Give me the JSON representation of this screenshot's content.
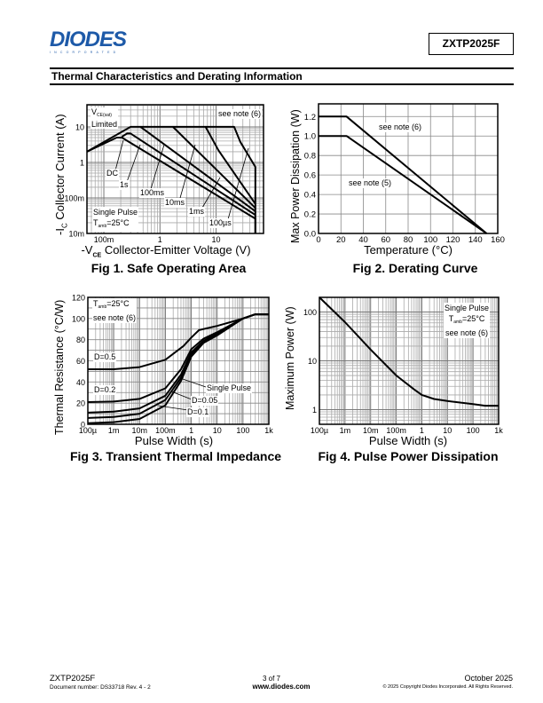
{
  "header": {
    "logo_text": "DIODES",
    "logo_subtext": "INCORPORATED",
    "part_number": "ZXTP2025F",
    "section_title": "Thermal Characteristics and Derating Information"
  },
  "footer": {
    "part_number": "ZXTP2025F",
    "document_number": "Document number: DS33718 Rev. 4 - 2",
    "page": "3 of 7",
    "website": "www.diodes.com",
    "date": "October 2025",
    "copyright": "© 2025 Copyright Diodes Incorporated. All Rights Reserved."
  },
  "annotations": {
    "fig1": {
      "vce_sat_v": "V",
      "vce_sat_sub": "CE(sat)",
      "vce_sat_limited": "Limited",
      "see_note": "see note (6)",
      "single_pulse": "Single Pulse",
      "tamb_t": "T",
      "tamb_sub": "amb",
      "tamb_val": "=25°C",
      "xlabel_prefix": "-V",
      "xlabel_sub": "CE",
      "xlabel_rest": "Collector-Emitter Voltage (V)",
      "ylabel_prefix": "-I",
      "ylabel_sub": "C",
      "ylabel_rest": "Collector Current (A)"
    },
    "fig2": {
      "note6": "see note (6)",
      "note5": "see note (5)"
    },
    "fig3": {
      "tamb_t": "T",
      "tamb_sub": "amb",
      "tamb_val": "=25°C",
      "see_note": "see note (6)"
    },
    "fig4": {
      "single_pulse": "Single Pulse",
      "tamb_t": "T",
      "tamb_sub": "amb",
      "tamb_val": "=25°C",
      "see_note": "see note (6)"
    }
  },
  "chart_data": [
    {
      "type": "line",
      "title": "Fig 1. Safe Operating Area",
      "xlabel": "-VCE Collector-Emitter Voltage (V)",
      "ylabel": "-IC Collector Current (A)",
      "xscale": "log",
      "yscale": "log",
      "xlim": [
        0.05,
        70
      ],
      "ylim": [
        0.01,
        42
      ],
      "xticks": [
        {
          "v": 0.1,
          "label": "100m"
        },
        {
          "v": 1,
          "label": "1"
        },
        {
          "v": 10,
          "label": "10"
        }
      ],
      "yticks": [
        {
          "v": 10,
          "label": "10"
        },
        {
          "v": 1,
          "label": "1"
        },
        {
          "v": 0.1,
          "label": "100m"
        },
        {
          "v": 0.01,
          "label": "10m"
        }
      ],
      "grid": true,
      "series": [
        {
          "name": "DC",
          "points": [
            [
              0.05,
              2
            ],
            [
              0.17,
              5
            ],
            [
              0.21,
              5
            ],
            [
              50,
              0.026
            ],
            [
              50,
              0.01
            ]
          ]
        },
        {
          "name": "1s",
          "points": [
            [
              0.21,
              5.3
            ],
            [
              0.26,
              6.5
            ],
            [
              0.3,
              6.5
            ],
            [
              50,
              0.033
            ]
          ]
        },
        {
          "name": "100ms",
          "points": [
            [
              0.05,
              2
            ],
            [
              0.3,
              10
            ],
            [
              0.45,
              10
            ],
            [
              50,
              0.042
            ]
          ]
        },
        {
          "name": "10ms",
          "points": [
            [
              0.45,
              10
            ],
            [
              1.7,
              10
            ],
            [
              50,
              0.052
            ]
          ]
        },
        {
          "name": "1ms",
          "points": [
            [
              1.7,
              10
            ],
            [
              6.5,
              10
            ],
            [
              11,
              2.2
            ],
            [
              50,
              0.068
            ]
          ]
        },
        {
          "name": "100µs",
          "points": [
            [
              6.5,
              10
            ],
            [
              21,
              10
            ],
            [
              27,
              3.8
            ],
            [
              50,
              0.75
            ],
            [
              50,
              0.01
            ]
          ]
        }
      ]
    },
    {
      "type": "line",
      "title": "Fig 2. Derating Curve",
      "xlabel": "Temperature (°C)",
      "ylabel": "Max Power Dissipation (W)",
      "xscale": "linear",
      "yscale": "linear",
      "xlim": [
        0,
        160
      ],
      "ylim": [
        0,
        1.33
      ],
      "xticks": [
        {
          "v": 0,
          "label": "0"
        },
        {
          "v": 20,
          "label": "20"
        },
        {
          "v": 40,
          "label": "40"
        },
        {
          "v": 60,
          "label": "60"
        },
        {
          "v": 80,
          "label": "80"
        },
        {
          "v": 100,
          "label": "100"
        },
        {
          "v": 120,
          "label": "120"
        },
        {
          "v": 140,
          "label": "140"
        },
        {
          "v": 160,
          "label": "160"
        }
      ],
      "yticks": [
        {
          "v": 0,
          "label": "0.0"
        },
        {
          "v": 0.2,
          "label": "0.2"
        },
        {
          "v": 0.4,
          "label": "0.4"
        },
        {
          "v": 0.6,
          "label": "0.6"
        },
        {
          "v": 0.8,
          "label": "0.8"
        },
        {
          "v": 1.0,
          "label": "1.0"
        },
        {
          "v": 1.2,
          "label": "1.2"
        }
      ],
      "grid": true,
      "series": [
        {
          "name": "see note (6)",
          "points": [
            [
              0,
              1.2
            ],
            [
              25,
              1.2
            ],
            [
              150,
              0
            ]
          ]
        },
        {
          "name": "see note (5)",
          "points": [
            [
              0,
              1.0
            ],
            [
              25,
              1.0
            ],
            [
              150,
              0
            ]
          ]
        }
      ]
    },
    {
      "type": "line",
      "title": "Fig 3. Transient Thermal Impedance",
      "xlabel": "Pulse Width (s)",
      "ylabel": "Thermal Resistance (°C/W)",
      "xscale": "log",
      "yscale": "linear",
      "xlim": [
        0.0001,
        1000
      ],
      "ylim": [
        0,
        120
      ],
      "xticks": [
        {
          "v": 0.0001,
          "label": "100µ"
        },
        {
          "v": 0.001,
          "label": "1m"
        },
        {
          "v": 0.01,
          "label": "10m"
        },
        {
          "v": 0.1,
          "label": "100m"
        },
        {
          "v": 1,
          "label": "1"
        },
        {
          "v": 10,
          "label": "10"
        },
        {
          "v": 100,
          "label": "100"
        },
        {
          "v": 1000,
          "label": "1k"
        }
      ],
      "yticks": [
        {
          "v": 0,
          "label": "0"
        },
        {
          "v": 20,
          "label": "20"
        },
        {
          "v": 40,
          "label": "40"
        },
        {
          "v": 60,
          "label": "60"
        },
        {
          "v": 80,
          "label": "80"
        },
        {
          "v": 100,
          "label": "100"
        },
        {
          "v": 120,
          "label": "120"
        }
      ],
      "grid": true,
      "series": [
        {
          "name": "D=0.5",
          "points": [
            [
              0.0001,
              52
            ],
            [
              0.001,
              52
            ],
            [
              0.01,
              54
            ],
            [
              0.1,
              61
            ],
            [
              0.5,
              74
            ],
            [
              1,
              82
            ],
            [
              2,
              89
            ],
            [
              10,
              93
            ],
            [
              100,
              100
            ],
            [
              300,
              104
            ],
            [
              1000,
              104
            ]
          ]
        },
        {
          "name": "D=0.2",
          "points": [
            [
              0.0001,
              21
            ],
            [
              0.001,
              21.5
            ],
            [
              0.01,
              24
            ],
            [
              0.1,
              34
            ],
            [
              0.4,
              52
            ],
            [
              1,
              71
            ],
            [
              3,
              81
            ],
            [
              10,
              87
            ],
            [
              100,
              100
            ],
            [
              300,
              104
            ],
            [
              1000,
              104
            ]
          ]
        },
        {
          "name": "D=0.1",
          "points": [
            [
              0.0001,
              11
            ],
            [
              0.001,
              12
            ],
            [
              0.01,
              15
            ],
            [
              0.1,
              27
            ],
            [
              0.4,
              47
            ],
            [
              1,
              68
            ],
            [
              3,
              79
            ],
            [
              10,
              86
            ],
            [
              100,
              100
            ],
            [
              300,
              104
            ],
            [
              1000,
              104
            ]
          ]
        },
        {
          "name": "D=0.05",
          "points": [
            [
              0.0001,
              6
            ],
            [
              0.001,
              7
            ],
            [
              0.01,
              10
            ],
            [
              0.1,
              23
            ],
            [
              0.4,
              44
            ],
            [
              1,
              66
            ],
            [
              3,
              78
            ],
            [
              10,
              85
            ],
            [
              100,
              100
            ],
            [
              300,
              104
            ],
            [
              1000,
              104
            ]
          ]
        },
        {
          "name": "Single Pulse",
          "points": [
            [
              0.0001,
              1
            ],
            [
              0.001,
              2
            ],
            [
              0.01,
              5
            ],
            [
              0.1,
              18
            ],
            [
              0.4,
              41
            ],
            [
              1,
              64
            ],
            [
              3,
              77
            ],
            [
              10,
              84
            ],
            [
              100,
              100
            ],
            [
              300,
              104
            ],
            [
              1000,
              104
            ]
          ]
        }
      ]
    },
    {
      "type": "line",
      "title": "Fig 4. Pulse Power Dissipation",
      "xlabel": "Pulse Width (s)",
      "ylabel": "Maximum Power (W)",
      "xscale": "log",
      "yscale": "log",
      "xlim": [
        0.0001,
        1000
      ],
      "ylim": [
        0.5,
        200
      ],
      "xticks": [
        {
          "v": 0.0001,
          "label": "100µ"
        },
        {
          "v": 0.001,
          "label": "1m"
        },
        {
          "v": 0.01,
          "label": "10m"
        },
        {
          "v": 0.1,
          "label": "100m"
        },
        {
          "v": 1,
          "label": "1"
        },
        {
          "v": 10,
          "label": "10"
        },
        {
          "v": 100,
          "label": "100"
        },
        {
          "v": 1000,
          "label": "1k"
        }
      ],
      "yticks": [
        {
          "v": 1,
          "label": "1"
        },
        {
          "v": 10,
          "label": "10"
        },
        {
          "v": 100,
          "label": "100"
        }
      ],
      "grid": true,
      "series": [
        {
          "name": "Single Pulse",
          "points": [
            [
              0.0001,
              200
            ],
            [
              0.001,
              62
            ],
            [
              0.01,
              17
            ],
            [
              0.1,
              5
            ],
            [
              0.5,
              2.6
            ],
            [
              1,
              2
            ],
            [
              3,
              1.65
            ],
            [
              10,
              1.5
            ],
            [
              100,
              1.3
            ],
            [
              300,
              1.2
            ],
            [
              1000,
              1.2
            ]
          ]
        }
      ]
    }
  ]
}
